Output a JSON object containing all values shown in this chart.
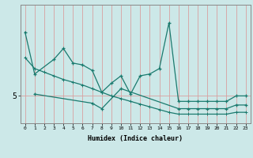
{
  "xlabel": "Humidex (Indice chaleur)",
  "ylabel": "",
  "background_color": "#cce8e8",
  "plot_bg_color": "#cce8e8",
  "line_color": "#1a7a6e",
  "grid_color": "#d9a0a0",
  "axis_color": "#888888",
  "x_values": [
    0,
    1,
    2,
    3,
    4,
    5,
    6,
    7,
    8,
    9,
    10,
    11,
    12,
    13,
    14,
    15,
    16,
    17,
    18,
    19,
    20,
    21,
    22,
    23
  ],
  "line1_y": [
    8.5,
    6.2,
    null,
    7.0,
    7.6,
    6.8,
    6.7,
    6.4,
    5.2,
    5.7,
    6.1,
    5.1,
    6.1,
    6.2,
    6.5,
    9.0,
    4.7,
    4.7,
    4.7,
    4.7,
    4.7,
    4.7,
    5.0,
    5.0
  ],
  "line2_y": [
    null,
    5.1,
    null,
    null,
    null,
    null,
    null,
    4.6,
    4.3,
    null,
    5.4,
    null,
    null,
    null,
    null,
    null,
    4.3,
    4.3,
    4.3,
    4.3,
    4.3,
    4.3,
    4.5,
    4.5
  ],
  "line3_y": [
    7.1,
    6.5,
    6.3,
    6.1,
    5.9,
    5.75,
    5.6,
    5.4,
    5.2,
    5.0,
    4.85,
    4.7,
    4.55,
    4.4,
    4.25,
    4.1,
    4.0,
    4.0,
    4.0,
    4.0,
    4.0,
    4.0,
    4.1,
    4.1
  ],
  "ytick_vals": [
    5
  ],
  "ytick_labels": [
    "5"
  ],
  "ylim": [
    3.5,
    10.0
  ],
  "xlim": [
    -0.5,
    23.5
  ]
}
